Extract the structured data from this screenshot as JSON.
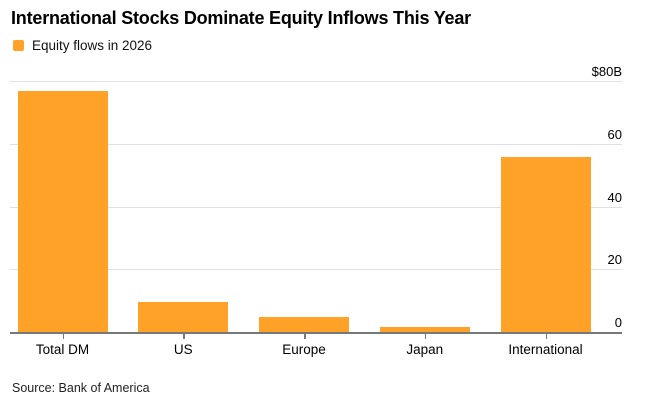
{
  "header": {
    "title": "International Stocks Dominate Equity Inflows This Year"
  },
  "legend": {
    "label": "Equity flows in 2026",
    "swatch_color": "#FFA227"
  },
  "source": {
    "text": "Source: Bank of America"
  },
  "colors": {
    "bar": "#FFA227",
    "gridline": "#e0e0e0",
    "axis_line": "#76787a",
    "text": "#000000"
  },
  "chart_data": {
    "type": "bar",
    "title": "International Stocks Dominate Equity Inflows This Year",
    "series_name": "Equity flows in 2026",
    "categories": [
      "Total DM",
      "US",
      "Europe",
      "Japan",
      "International"
    ],
    "values": [
      77,
      10,
      5,
      2,
      56
    ],
    "unit": "$B",
    "ylim": [
      0,
      80
    ],
    "yticks": [
      0,
      20,
      40,
      60,
      80
    ],
    "ytick_labels": [
      "0",
      "20",
      "40",
      "60",
      "$80B"
    ],
    "axis_side": "right",
    "grid": true,
    "legend_position": "top-left",
    "source": "Source: Bank of America"
  }
}
